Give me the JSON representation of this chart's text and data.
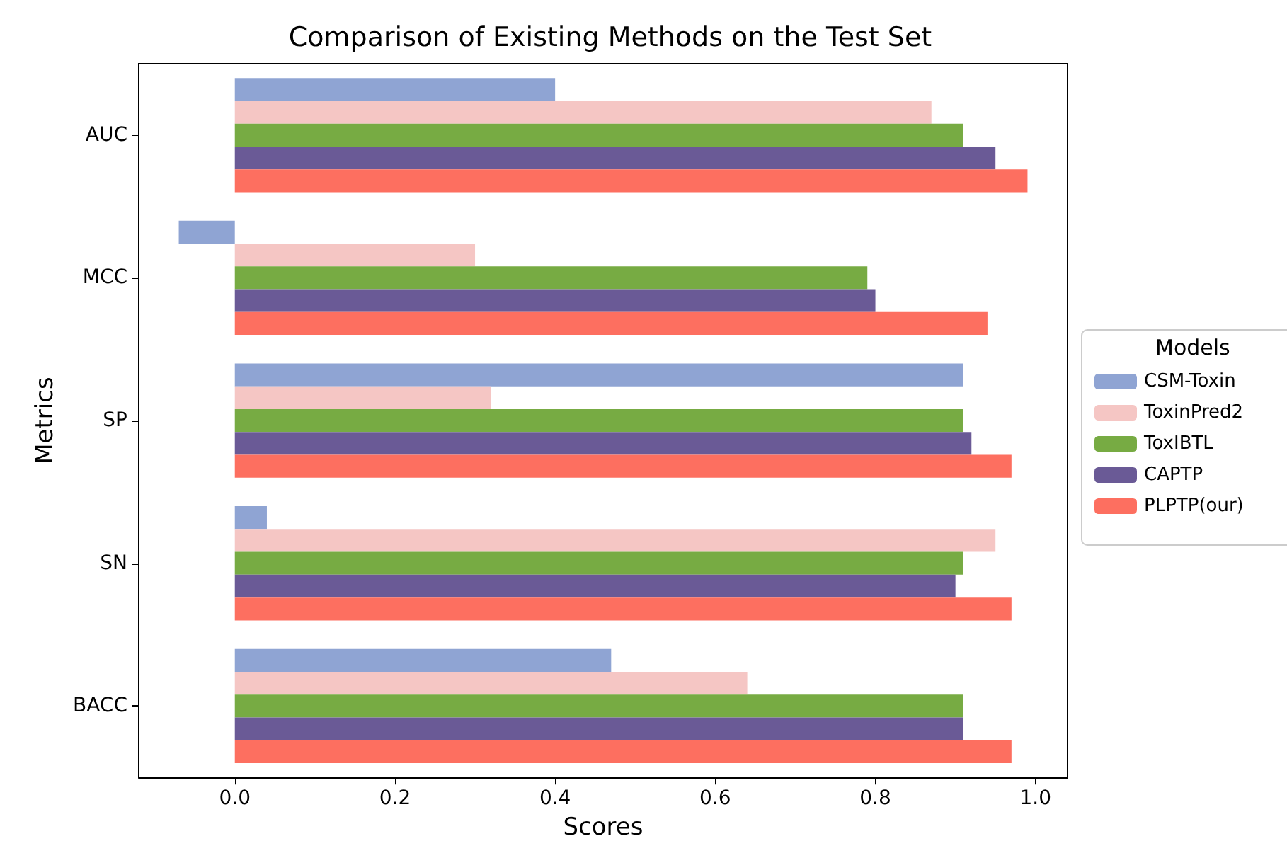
{
  "chart_data": {
    "type": "bar",
    "orientation": "horizontal",
    "title": "Comparison of Existing Methods on the Test Set",
    "xlabel": "Scores",
    "ylabel": "Metrics",
    "legend_title": "Models",
    "legend": "right",
    "grid": false,
    "categories": [
      "AUC",
      "MCC",
      "SP",
      "SN",
      "BACC"
    ],
    "xlim": [
      -0.12,
      1.04
    ],
    "xticks": [
      {
        "value": 0,
        "label": "0.0"
      },
      {
        "value": 0.2,
        "label": "0.2"
      },
      {
        "value": 0.4,
        "label": "0.4"
      },
      {
        "value": 0.6,
        "label": "0.6"
      },
      {
        "value": 0.8,
        "label": "0.8"
      },
      {
        "value": 1,
        "label": "1.0"
      }
    ],
    "series": [
      {
        "name": "CSM-Toxin",
        "color": "#8fa4d3",
        "values": [
          0.4,
          -0.07,
          0.91,
          0.04,
          0.47
        ]
      },
      {
        "name": "ToxinPred2",
        "color": "#f5c6c4",
        "values": [
          0.87,
          0.3,
          0.32,
          0.95,
          0.64
        ]
      },
      {
        "name": "ToxIBTL",
        "color": "#77ab43",
        "values": [
          0.91,
          0.79,
          0.91,
          0.91,
          0.91
        ]
      },
      {
        "name": "CAPTP",
        "color": "#6a5a96",
        "values": [
          0.95,
          0.8,
          0.92,
          0.9,
          0.91
        ]
      },
      {
        "name": "PLPTP(our)",
        "color": "#fd6f60",
        "values": [
          0.99,
          0.94,
          0.97,
          0.97,
          0.97
        ]
      }
    ]
  }
}
